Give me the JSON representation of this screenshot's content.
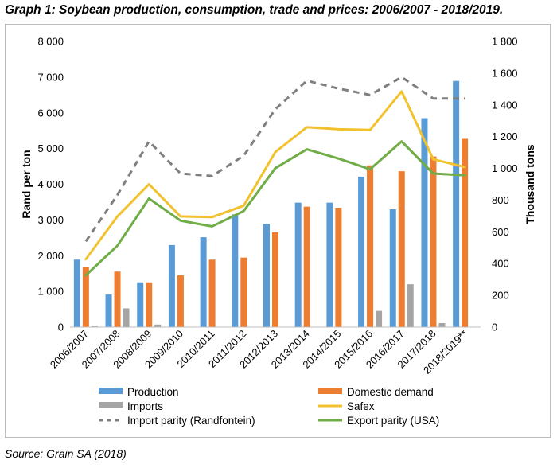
{
  "title": "Graph 1: Soybean production, consumption, trade and prices: 2006/2007 - 2018/2019.",
  "source": "Source: Grain SA (2018)",
  "chart_data": {
    "type": "bar",
    "categories": [
      "2006/2007",
      "2007/2008",
      "2008/2009",
      "2009/2010",
      "2010/2011",
      "2011/2012",
      "2012/2013",
      "2013/2014",
      "2014/2015",
      "2015/2016",
      "2016/2017",
      "2017/2018",
      "2018/2019**"
    ],
    "ylabel_left": "Rand per ton",
    "ylabel_right": "Thousand tons",
    "ylim_left": [
      0,
      8000
    ],
    "ylim_right": [
      0,
      1800
    ],
    "yticks_left": [
      "0",
      "1 000",
      "2 000",
      "3 000",
      "4 000",
      "5 000",
      "6 000",
      "7 000",
      "8 000"
    ],
    "yticks_right": [
      "0",
      "200",
      "400",
      "600",
      "800",
      "1 000",
      "1 200",
      "1 400",
      "1 600",
      "1 800"
    ],
    "series": [
      {
        "name": "Production",
        "kind": "bar",
        "axis": "right",
        "color": "#5b9bd5",
        "values": [
          425,
          205,
          282,
          517,
          566,
          710,
          650,
          784,
          784,
          948,
          742,
          1316,
          1551
        ]
      },
      {
        "name": "Domestic demand",
        "kind": "bar",
        "axis": "right",
        "color": "#ed7d31",
        "values": [
          376,
          350,
          282,
          326,
          425,
          438,
          597,
          759,
          752,
          1019,
          982,
          1075,
          1186
        ]
      },
      {
        "name": "Imports",
        "kind": "bar",
        "axis": "right",
        "color": "#a5a5a5",
        "values": [
          10,
          118,
          16,
          0,
          0,
          0,
          0,
          0,
          0,
          102,
          270,
          25,
          0
        ]
      },
      {
        "name": "Safex",
        "kind": "line",
        "axis": "left",
        "color": "#f2c12e",
        "dash": false,
        "values": [
          1900,
          3100,
          4000,
          3100,
          3080,
          3400,
          4900,
          5600,
          5540,
          5520,
          6600,
          4700,
          4480
        ]
      },
      {
        "name": "Import parity (Randfontein)",
        "kind": "line",
        "axis": "left",
        "color": "#7f7f7f",
        "dash": true,
        "values": [
          2400,
          3700,
          5200,
          4300,
          4230,
          4800,
          6100,
          6900,
          6680,
          6500,
          7000,
          6400,
          6400
        ]
      },
      {
        "name": "Export parity (USA)",
        "kind": "line",
        "axis": "left",
        "color": "#70ad47",
        "dash": false,
        "values": [
          1450,
          2280,
          3600,
          2980,
          2820,
          3250,
          4450,
          4980,
          4720,
          4420,
          5200,
          4300,
          4250
        ]
      }
    ],
    "legend_position": "bottom",
    "grid": false
  }
}
